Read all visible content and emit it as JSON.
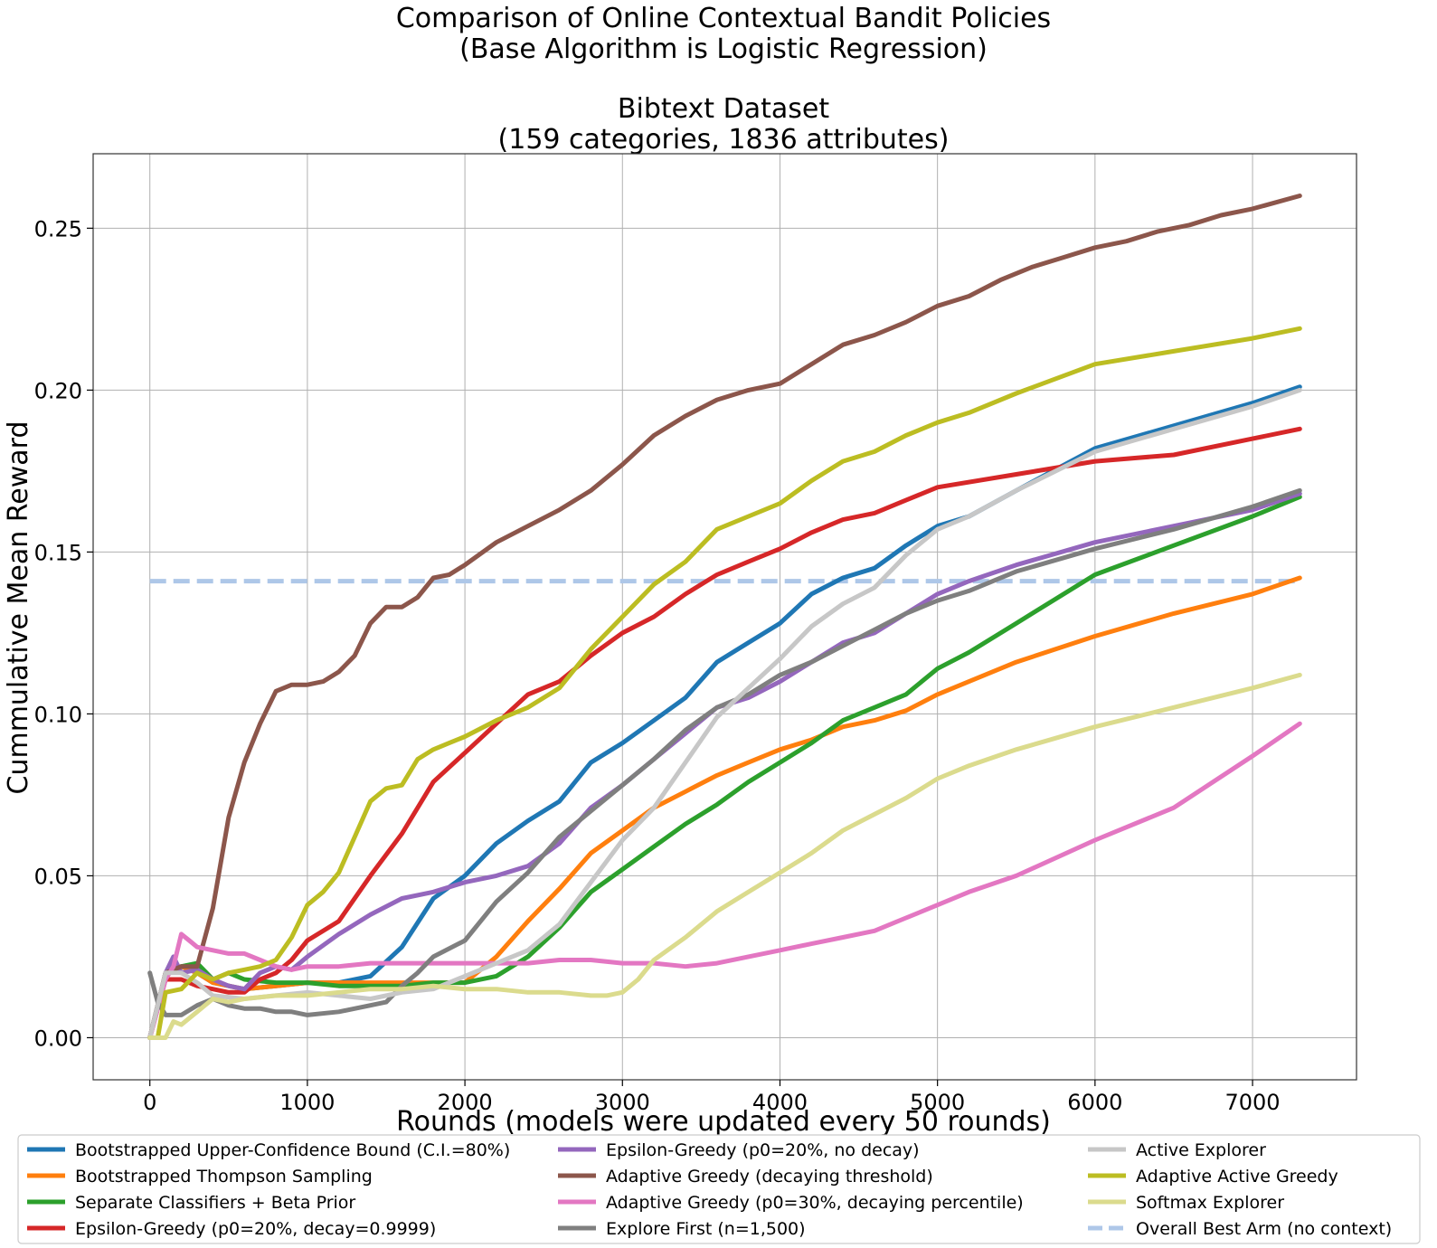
{
  "chart_data": {
    "type": "line",
    "title_lines": [
      "Comparison of Online Contextual Bandit Policies",
      "(Base Algorithm is Logistic Regression)",
      "Bibtext Dataset",
      "(159 categories, 1836 attributes)"
    ],
    "xlabel": "Rounds (models were updated every 50 rounds)",
    "ylabel": "Cummulative Mean Reward",
    "xlim": [
      -360,
      7660
    ],
    "ylim": [
      -0.013,
      0.273
    ],
    "xticks": [
      0,
      1000,
      2000,
      3000,
      4000,
      5000,
      6000,
      7000
    ],
    "xtick_labels": [
      "0",
      "1000",
      "2000",
      "3000",
      "4000",
      "5000",
      "6000",
      "7000"
    ],
    "yticks": [
      0.0,
      0.05,
      0.1,
      0.15,
      0.2,
      0.25
    ],
    "ytick_labels": [
      "0.00",
      "0.05",
      "0.10",
      "0.15",
      "0.20",
      "0.25"
    ],
    "grid": true,
    "legend_position": "bottom",
    "series": [
      {
        "name": "Bootstrapped Upper-Confidence Bound (C.I.=80%)",
        "color": "#1f77b4",
        "style": "solid",
        "x": [
          0,
          100,
          200,
          300,
          400,
          600,
          800,
          1000,
          1200,
          1400,
          1600,
          1800,
          2000,
          2200,
          2400,
          2600,
          2800,
          3000,
          3200,
          3400,
          3600,
          3800,
          4000,
          4200,
          4400,
          4600,
          4800,
          5000,
          5200,
          5500,
          6000,
          6500,
          7000,
          7300
        ],
        "y": [
          0.0,
          0.02,
          0.022,
          0.02,
          0.017,
          0.015,
          0.016,
          0.017,
          0.017,
          0.019,
          0.028,
          0.043,
          0.05,
          0.06,
          0.067,
          0.073,
          0.085,
          0.091,
          0.098,
          0.105,
          0.116,
          0.122,
          0.128,
          0.137,
          0.142,
          0.145,
          0.152,
          0.158,
          0.161,
          0.169,
          0.182,
          0.189,
          0.196,
          0.201
        ]
      },
      {
        "name": "Bootstrapped Thompson Sampling",
        "color": "#ff7f0e",
        "style": "solid",
        "x": [
          0,
          100,
          200,
          300,
          400,
          600,
          800,
          1000,
          1200,
          1400,
          1600,
          1800,
          2000,
          2200,
          2400,
          2600,
          2800,
          3000,
          3200,
          3400,
          3600,
          3800,
          4000,
          4200,
          4400,
          4600,
          4800,
          5000,
          5200,
          5500,
          6000,
          6500,
          7000,
          7300
        ],
        "y": [
          0.0,
          0.02,
          0.022,
          0.02,
          0.017,
          0.015,
          0.016,
          0.017,
          0.017,
          0.017,
          0.017,
          0.017,
          0.017,
          0.025,
          0.036,
          0.046,
          0.057,
          0.064,
          0.071,
          0.076,
          0.081,
          0.085,
          0.089,
          0.092,
          0.096,
          0.098,
          0.101,
          0.106,
          0.11,
          0.116,
          0.124,
          0.131,
          0.137,
          0.142
        ]
      },
      {
        "name": "Separate Classifiers + Beta Prior",
        "color": "#2ca02c",
        "style": "solid",
        "x": [
          0,
          100,
          200,
          300,
          400,
          500,
          600,
          800,
          1000,
          1200,
          1400,
          1600,
          1800,
          2000,
          2200,
          2400,
          2600,
          2800,
          3000,
          3200,
          3400,
          3600,
          3800,
          4000,
          4200,
          4400,
          4600,
          4800,
          5000,
          5200,
          5500,
          6000,
          6500,
          7000,
          7300
        ],
        "y": [
          0.0,
          0.02,
          0.022,
          0.023,
          0.018,
          0.02,
          0.018,
          0.017,
          0.017,
          0.016,
          0.016,
          0.016,
          0.017,
          0.017,
          0.019,
          0.025,
          0.034,
          0.045,
          0.052,
          0.059,
          0.066,
          0.072,
          0.079,
          0.085,
          0.091,
          0.098,
          0.102,
          0.106,
          0.114,
          0.119,
          0.128,
          0.143,
          0.152,
          0.161,
          0.167
        ]
      },
      {
        "name": "Epsilon-Greedy (p0=20%, decay=0.9999)",
        "color": "#d62728",
        "style": "solid",
        "x": [
          0,
          100,
          200,
          300,
          400,
          500,
          600,
          700,
          800,
          900,
          1000,
          1200,
          1400,
          1600,
          1800,
          2000,
          2200,
          2400,
          2600,
          2800,
          3000,
          3200,
          3400,
          3600,
          3800,
          4000,
          4200,
          4400,
          4600,
          4800,
          5000,
          5500,
          6000,
          6500,
          7000,
          7300
        ],
        "y": [
          0.0,
          0.018,
          0.018,
          0.016,
          0.015,
          0.014,
          0.014,
          0.018,
          0.02,
          0.024,
          0.03,
          0.036,
          0.05,
          0.063,
          0.079,
          0.088,
          0.097,
          0.106,
          0.11,
          0.118,
          0.125,
          0.13,
          0.137,
          0.143,
          0.147,
          0.151,
          0.156,
          0.16,
          0.162,
          0.166,
          0.17,
          0.174,
          0.178,
          0.18,
          0.185,
          0.188
        ]
      },
      {
        "name": "Epsilon-Greedy (p0=20%, no decay)",
        "color": "#9467bd",
        "style": "solid",
        "x": [
          0,
          100,
          150,
          200,
          300,
          400,
          500,
          600,
          700,
          800,
          900,
          1000,
          1200,
          1400,
          1600,
          1800,
          2000,
          2200,
          2400,
          2600,
          2800,
          3000,
          3200,
          3400,
          3600,
          3800,
          4000,
          4200,
          4400,
          4600,
          4800,
          5000,
          5200,
          5500,
          6000,
          6500,
          7000,
          7300
        ],
        "y": [
          0.0,
          0.02,
          0.025,
          0.02,
          0.021,
          0.018,
          0.016,
          0.015,
          0.02,
          0.022,
          0.021,
          0.025,
          0.032,
          0.038,
          0.043,
          0.045,
          0.048,
          0.05,
          0.053,
          0.06,
          0.071,
          0.078,
          0.086,
          0.094,
          0.102,
          0.105,
          0.11,
          0.116,
          0.122,
          0.125,
          0.131,
          0.137,
          0.141,
          0.146,
          0.153,
          0.158,
          0.163,
          0.168
        ]
      },
      {
        "name": "Adaptive Greedy (decaying threshold)",
        "color": "#8c564b",
        "style": "solid",
        "x": [
          0,
          100,
          200,
          300,
          400,
          500,
          600,
          700,
          800,
          900,
          1000,
          1100,
          1200,
          1300,
          1400,
          1500,
          1600,
          1700,
          1800,
          1900,
          2000,
          2200,
          2400,
          2600,
          2800,
          3000,
          3200,
          3400,
          3600,
          3800,
          4000,
          4200,
          4400,
          4600,
          4800,
          5000,
          5200,
          5400,
          5600,
          5800,
          6000,
          6200,
          6400,
          6600,
          6800,
          7000,
          7300
        ],
        "y": [
          0.0,
          0.02,
          0.022,
          0.022,
          0.04,
          0.068,
          0.085,
          0.097,
          0.107,
          0.109,
          0.109,
          0.11,
          0.113,
          0.118,
          0.128,
          0.133,
          0.133,
          0.136,
          0.142,
          0.143,
          0.146,
          0.153,
          0.158,
          0.163,
          0.169,
          0.177,
          0.186,
          0.192,
          0.197,
          0.2,
          0.202,
          0.208,
          0.214,
          0.217,
          0.221,
          0.226,
          0.229,
          0.234,
          0.238,
          0.241,
          0.244,
          0.246,
          0.249,
          0.251,
          0.254,
          0.256,
          0.26
        ]
      },
      {
        "name": "Adaptive Greedy (p0=30%, decaying percentile)",
        "color": "#e377c2",
        "style": "solid",
        "x": [
          0,
          100,
          150,
          200,
          250,
          300,
          400,
          500,
          600,
          700,
          800,
          900,
          1000,
          1200,
          1400,
          1600,
          1800,
          2000,
          2200,
          2400,
          2600,
          2800,
          3000,
          3200,
          3400,
          3600,
          3800,
          4000,
          4200,
          4400,
          4600,
          4800,
          5000,
          5200,
          5500,
          6000,
          6500,
          7000,
          7300
        ],
        "y": [
          0.0,
          0.018,
          0.022,
          0.032,
          0.03,
          0.028,
          0.027,
          0.026,
          0.026,
          0.024,
          0.022,
          0.021,
          0.022,
          0.022,
          0.023,
          0.023,
          0.023,
          0.023,
          0.023,
          0.023,
          0.024,
          0.024,
          0.023,
          0.023,
          0.022,
          0.023,
          0.025,
          0.027,
          0.029,
          0.031,
          0.033,
          0.037,
          0.041,
          0.045,
          0.05,
          0.061,
          0.071,
          0.087,
          0.097
        ]
      },
      {
        "name": "Explore First (n=1,500)",
        "color": "#7f7f7f",
        "style": "solid",
        "x": [
          0,
          50,
          100,
          200,
          300,
          400,
          500,
          600,
          700,
          800,
          900,
          1000,
          1200,
          1400,
          1500,
          1600,
          1700,
          1800,
          2000,
          2200,
          2400,
          2600,
          2800,
          3000,
          3200,
          3400,
          3600,
          3800,
          4000,
          4200,
          4400,
          4600,
          4800,
          5000,
          5200,
          5500,
          6000,
          6500,
          7000,
          7300
        ],
        "y": [
          0.02,
          0.011,
          0.007,
          0.007,
          0.01,
          0.012,
          0.01,
          0.009,
          0.009,
          0.008,
          0.008,
          0.007,
          0.008,
          0.01,
          0.011,
          0.016,
          0.02,
          0.025,
          0.03,
          0.042,
          0.051,
          0.062,
          0.07,
          0.078,
          0.086,
          0.095,
          0.102,
          0.106,
          0.112,
          0.116,
          0.121,
          0.126,
          0.131,
          0.135,
          0.138,
          0.144,
          0.151,
          0.157,
          0.164,
          0.169
        ]
      },
      {
        "name": "Active Explorer",
        "color": "#c7c7c7",
        "style": "solid",
        "x": [
          0,
          100,
          200,
          300,
          400,
          600,
          800,
          1000,
          1200,
          1400,
          1600,
          1800,
          2000,
          2200,
          2400,
          2600,
          2800,
          3000,
          3200,
          3400,
          3600,
          3800,
          4000,
          4200,
          4400,
          4600,
          4800,
          5000,
          5200,
          5500,
          6000,
          6500,
          7000,
          7300
        ],
        "y": [
          0.0,
          0.02,
          0.02,
          0.017,
          0.013,
          0.012,
          0.013,
          0.014,
          0.013,
          0.012,
          0.014,
          0.015,
          0.019,
          0.023,
          0.027,
          0.035,
          0.048,
          0.061,
          0.071,
          0.085,
          0.099,
          0.108,
          0.117,
          0.127,
          0.134,
          0.139,
          0.149,
          0.157,
          0.161,
          0.169,
          0.181,
          0.188,
          0.195,
          0.2
        ]
      },
      {
        "name": "Adaptive Active Greedy",
        "color": "#bcbd22",
        "style": "solid",
        "x": [
          0,
          50,
          100,
          200,
          300,
          400,
          500,
          600,
          700,
          800,
          900,
          1000,
          1100,
          1200,
          1300,
          1400,
          1500,
          1600,
          1700,
          1800,
          1900,
          2000,
          2200,
          2400,
          2600,
          2800,
          3000,
          3200,
          3400,
          3600,
          3800,
          4000,
          4200,
          4400,
          4600,
          4800,
          5000,
          5200,
          5500,
          6000,
          6500,
          7000,
          7300
        ],
        "y": [
          0.0,
          0.0,
          0.014,
          0.015,
          0.02,
          0.018,
          0.02,
          0.021,
          0.022,
          0.024,
          0.031,
          0.041,
          0.045,
          0.051,
          0.062,
          0.073,
          0.077,
          0.078,
          0.086,
          0.089,
          0.091,
          0.093,
          0.098,
          0.102,
          0.108,
          0.12,
          0.13,
          0.14,
          0.147,
          0.157,
          0.161,
          0.165,
          0.172,
          0.178,
          0.181,
          0.186,
          0.19,
          0.193,
          0.199,
          0.208,
          0.212,
          0.216,
          0.219
        ]
      },
      {
        "name": "Softmax Explorer",
        "color": "#dbdb8d",
        "style": "solid",
        "x": [
          0,
          50,
          100,
          150,
          200,
          300,
          400,
          500,
          600,
          800,
          1000,
          1200,
          1400,
          1600,
          1800,
          2000,
          2200,
          2400,
          2600,
          2800,
          2900,
          3000,
          3100,
          3200,
          3400,
          3600,
          3800,
          4000,
          4200,
          4400,
          4600,
          4800,
          5000,
          5200,
          5500,
          6000,
          6500,
          7000,
          7300
        ],
        "y": [
          0.0,
          0.0,
          0.0,
          0.005,
          0.004,
          0.008,
          0.012,
          0.011,
          0.012,
          0.013,
          0.013,
          0.014,
          0.015,
          0.015,
          0.016,
          0.015,
          0.015,
          0.014,
          0.014,
          0.013,
          0.013,
          0.014,
          0.018,
          0.024,
          0.031,
          0.039,
          0.045,
          0.051,
          0.057,
          0.064,
          0.069,
          0.074,
          0.08,
          0.084,
          0.089,
          0.096,
          0.102,
          0.108,
          0.112
        ]
      },
      {
        "name": "Overall Best Arm (no context)",
        "color": "#aec7e8",
        "style": "dashed",
        "x": [
          0,
          7300
        ],
        "y": [
          0.141,
          0.141
        ]
      }
    ]
  }
}
